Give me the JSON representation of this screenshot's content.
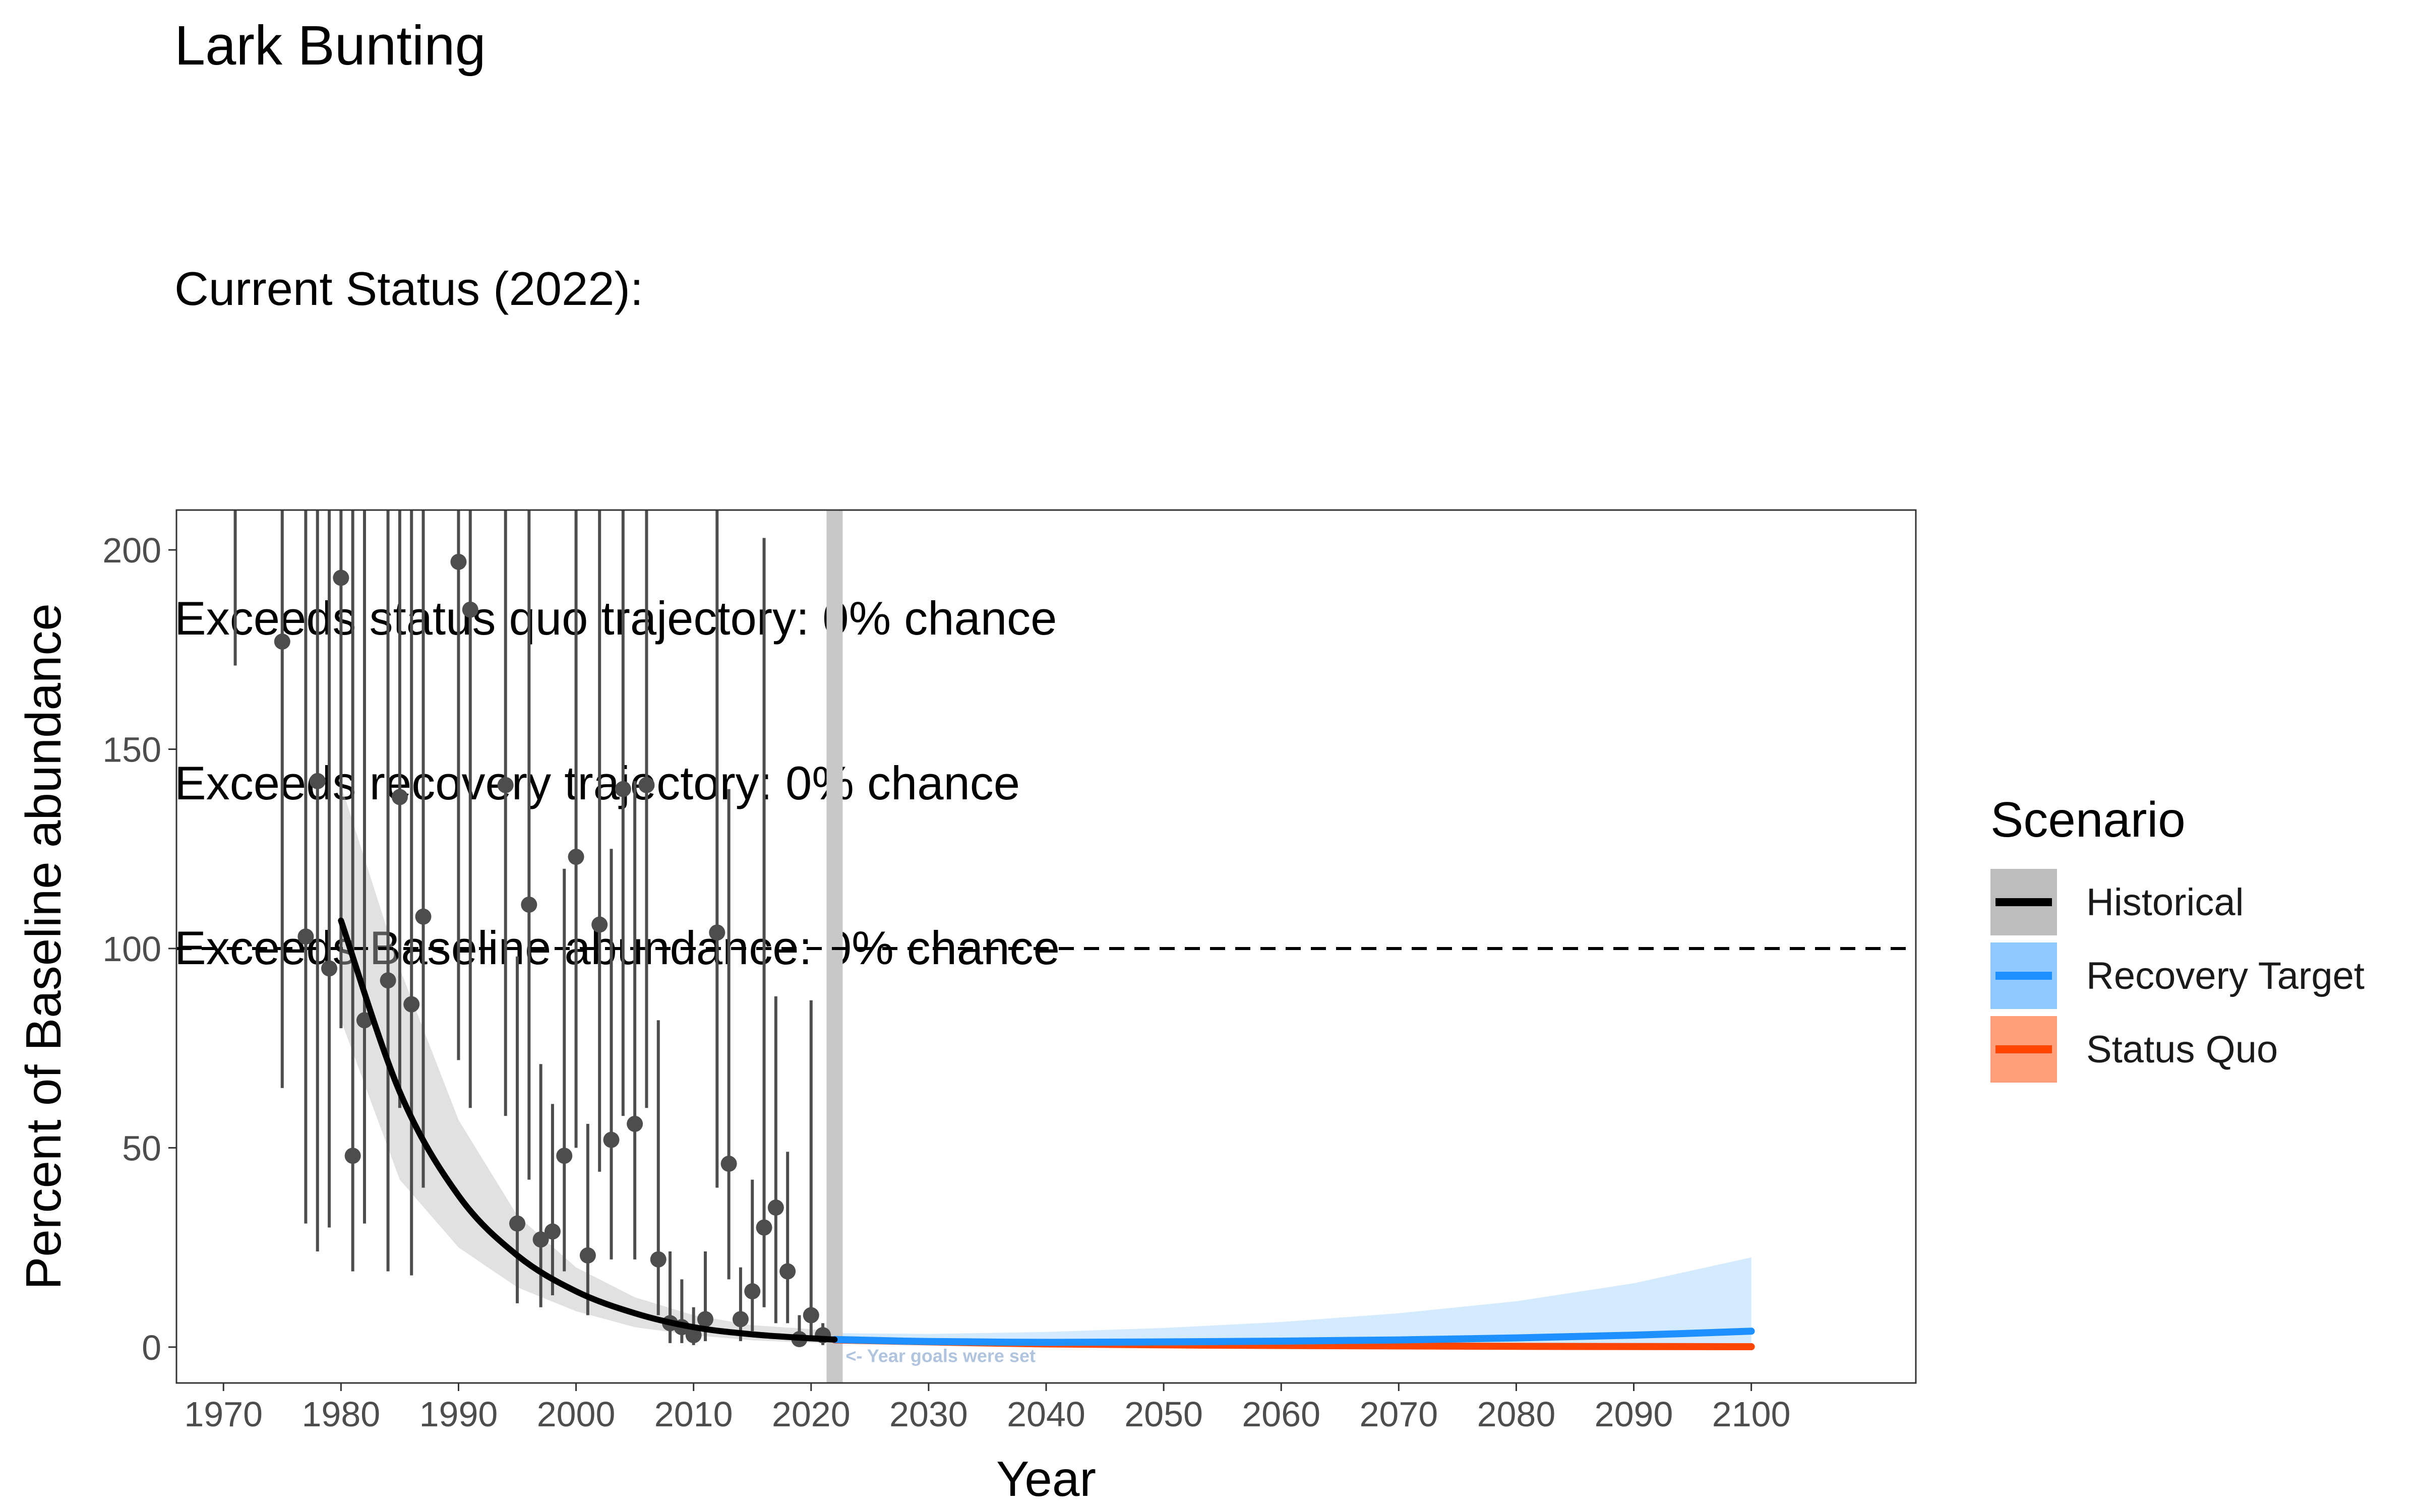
{
  "title": "Lark Bunting",
  "subtitle_lines": [
    "Current Status (2022):",
    "",
    "Exceeds status quo trajectory: 0% chance",
    "Exceeds recovery trajectory: 0% chance",
    "Exceeds Baseline abundance: 0% chance"
  ],
  "legend": {
    "title": "Scenario",
    "items": [
      {
        "label": "Historical",
        "line_color": "#000000",
        "fill_color": "#bdbdbd"
      },
      {
        "label": "Recovery Target",
        "line_color": "#1e90ff",
        "fill_color": "#8ec8ff"
      },
      {
        "label": "Status Quo",
        "line_color": "#ff4500",
        "fill_color": "#ffa07a"
      }
    ]
  },
  "chart_data": {
    "type": "scatter",
    "title": "Lark Bunting",
    "xlabel": "Year",
    "ylabel": "Percent of Baseline abundance",
    "xlim": [
      1966,
      2114
    ],
    "ylim": [
      -9,
      210
    ],
    "x_ticks": [
      1970,
      1980,
      1990,
      2000,
      2010,
      2020,
      2030,
      2040,
      2050,
      2060,
      2070,
      2080,
      2090,
      2100
    ],
    "y_ticks": [
      0,
      50,
      100,
      150,
      200
    ],
    "baseline_reference": 100,
    "goal_year": 2022,
    "goal_annotation": "<- Year goals were set",
    "observations": [
      {
        "year": 1971,
        "lower": 171,
        "upper": 210
      },
      {
        "year": 1975,
        "value": 177,
        "lower": 65,
        "upper": 210
      },
      {
        "year": 1977,
        "value": 103,
        "lower": 31,
        "upper": 210
      },
      {
        "year": 1978,
        "value": 142,
        "lower": 24,
        "upper": 210
      },
      {
        "year": 1979,
        "value": 95,
        "lower": 30,
        "upper": 210
      },
      {
        "year": 1980,
        "value": 193,
        "lower": 80,
        "upper": 210
      },
      {
        "year": 1981,
        "value": 48,
        "lower": 19,
        "upper": 210
      },
      {
        "year": 1982,
        "value": 82,
        "lower": 31,
        "upper": 210
      },
      {
        "year": 1984,
        "value": 92,
        "lower": 19,
        "upper": 210
      },
      {
        "year": 1985,
        "value": 138,
        "lower": 60,
        "upper": 210
      },
      {
        "year": 1986,
        "value": 86,
        "lower": 18,
        "upper": 210
      },
      {
        "year": 1987,
        "value": 108,
        "lower": 40,
        "upper": 210
      },
      {
        "year": 1990,
        "value": 197,
        "lower": 72,
        "upper": 210
      },
      {
        "year": 1991,
        "value": 185,
        "lower": 60,
        "upper": 210
      },
      {
        "year": 1994,
        "value": 141,
        "lower": 58,
        "upper": 210
      },
      {
        "year": 1995,
        "value": 31,
        "lower": 11,
        "upper": 98
      },
      {
        "year": 1996,
        "value": 111,
        "lower": 42,
        "upper": 210
      },
      {
        "year": 1997,
        "value": 27,
        "lower": 10,
        "upper": 71
      },
      {
        "year": 1998,
        "value": 29,
        "lower": 13,
        "upper": 61
      },
      {
        "year": 1999,
        "value": 48,
        "lower": 19,
        "upper": 120
      },
      {
        "year": 2000,
        "value": 123,
        "lower": 50,
        "upper": 210
      },
      {
        "year": 2001,
        "value": 23,
        "lower": 8,
        "upper": 56
      },
      {
        "year": 2002,
        "value": 106,
        "lower": 44,
        "upper": 210
      },
      {
        "year": 2003,
        "value": 52,
        "lower": 22,
        "upper": 125
      },
      {
        "year": 2004,
        "value": 140,
        "lower": 58,
        "upper": 210
      },
      {
        "year": 2005,
        "value": 56,
        "lower": 22,
        "upper": 142
      },
      {
        "year": 2006,
        "value": 141,
        "lower": 60,
        "upper": 210
      },
      {
        "year": 2007,
        "value": 22,
        "lower": 8,
        "upper": 82
      },
      {
        "year": 2008,
        "value": 6,
        "lower": 1,
        "upper": 24
      },
      {
        "year": 2009,
        "value": 5,
        "lower": 1,
        "upper": 17
      },
      {
        "year": 2010,
        "value": 3,
        "lower": 0.5,
        "upper": 10
      },
      {
        "year": 2011,
        "value": 7,
        "lower": 1.5,
        "upper": 24
      },
      {
        "year": 2012,
        "value": 104,
        "lower": 40,
        "upper": 210
      },
      {
        "year": 2013,
        "value": 46,
        "lower": 17,
        "upper": 140
      },
      {
        "year": 2014,
        "value": 7,
        "lower": 1.5,
        "upper": 20
      },
      {
        "year": 2015,
        "value": 14,
        "lower": 4,
        "upper": 42
      },
      {
        "year": 2016,
        "value": 30,
        "lower": 10,
        "upper": 203
      },
      {
        "year": 2017,
        "value": 35,
        "lower": 6,
        "upper": 88
      },
      {
        "year": 2018,
        "value": 19,
        "lower": 6,
        "upper": 49
      },
      {
        "year": 2019,
        "value": 2,
        "lower": 0.5,
        "upper": 8
      },
      {
        "year": 2020,
        "value": 8,
        "lower": 2,
        "upper": 87
      },
      {
        "year": 2021,
        "value": 3,
        "lower": 0.5,
        "upper": 6
      }
    ],
    "series": [
      {
        "name": "Historical",
        "color": "#000000",
        "fill": "#bdbdbd",
        "x": [
          1980,
          1985,
          1990,
          1995,
          2000,
          2005,
          2010,
          2015,
          2020,
          2022
        ],
        "y": [
          107,
          64,
          38,
          23,
          14,
          8.5,
          5,
          3.2,
          2.2,
          1.9
        ],
        "lower": [
          82,
          42,
          25,
          15,
          9,
          5,
          3,
          1.7,
          1.1,
          0.9
        ],
        "upper": [
          141,
          95,
          57,
          33,
          20,
          12.5,
          8,
          5.5,
          4.5,
          4
        ]
      },
      {
        "name": "Recovery Target",
        "color": "#1e90ff",
        "fill": "#8ec8ff",
        "x": [
          2022,
          2030,
          2040,
          2050,
          2060,
          2070,
          2080,
          2090,
          2100
        ],
        "y": [
          1.9,
          1.4,
          1.2,
          1.3,
          1.5,
          1.8,
          2.3,
          3.0,
          4.0
        ],
        "lower": [
          1.2,
          0.8,
          0.5,
          0.4,
          0.4,
          0.4,
          0.4,
          0.4,
          0.4
        ],
        "upper": [
          3.5,
          3.3,
          3.8,
          4.8,
          6.3,
          8.5,
          11.5,
          16.0,
          22.5
        ]
      },
      {
        "name": "Status Quo",
        "color": "#ff4500",
        "fill": "#ffa07a",
        "x": [
          2022,
          2040,
          2060,
          2080,
          2100
        ],
        "y": [
          1.8,
          0.8,
          0.4,
          0.2,
          0.1
        ],
        "lower": [
          1.2,
          0.4,
          0.15,
          0.05,
          0.02
        ],
        "upper": [
          2.5,
          1.3,
          0.7,
          0.4,
          0.25
        ]
      }
    ]
  }
}
